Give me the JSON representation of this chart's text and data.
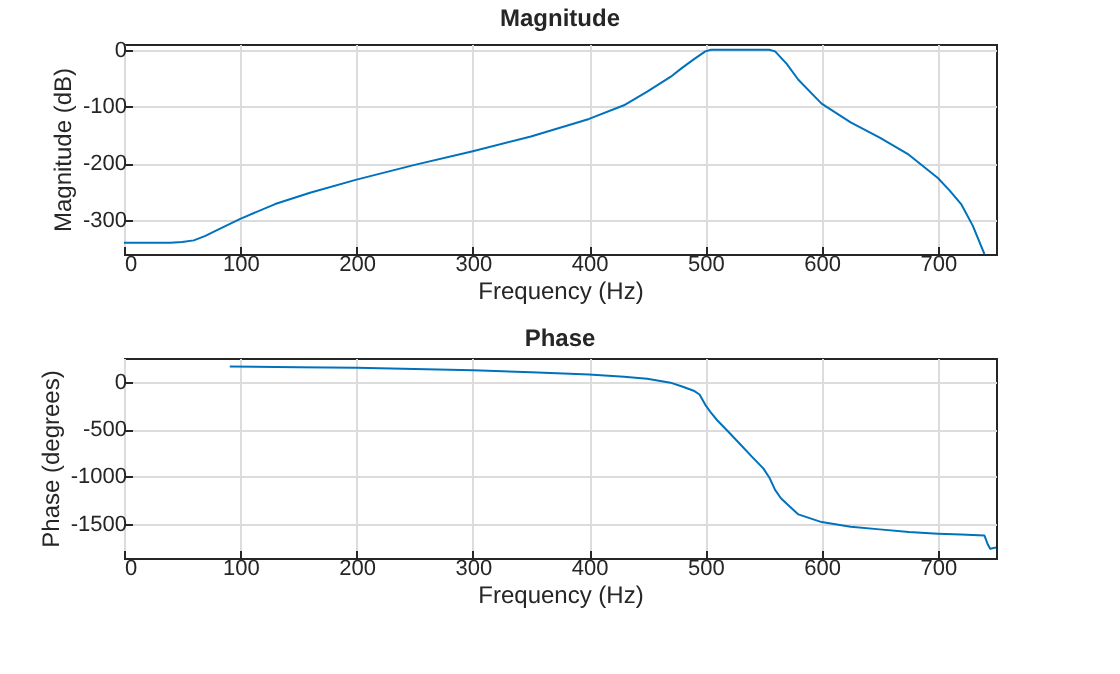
{
  "chart_data": [
    {
      "type": "line",
      "title": "Magnitude",
      "xlabel": "Frequency (Hz)",
      "ylabel": "Magnitude (dB)",
      "xlim": [
        0,
        750
      ],
      "xticks": [
        0,
        100,
        200,
        300,
        400,
        500,
        600,
        700
      ],
      "ylim": [
        -360,
        10
      ],
      "yticks": [
        -300,
        -200,
        -100,
        0
      ],
      "grid": true,
      "series": [
        {
          "color": "#0072bd",
          "x": [
            0,
            40,
            50,
            60,
            70,
            80,
            100,
            130,
            160,
            200,
            250,
            300,
            350,
            400,
            430,
            450,
            470,
            480,
            490,
            500,
            505,
            530,
            555,
            560,
            570,
            580,
            600,
            625,
            650,
            675,
            700,
            710,
            720,
            730,
            740
          ],
          "values": [
            -340,
            -340,
            -339,
            -336,
            -328,
            -318,
            -298,
            -272,
            -252,
            -229,
            -203,
            -179,
            -153,
            -122,
            -98,
            -74,
            -48,
            -32,
            -17,
            -3,
            0,
            0,
            0,
            -3,
            -25,
            -53,
            -95,
            -128,
            -155,
            -185,
            -226,
            -248,
            -272,
            -310,
            -360
          ]
        }
      ]
    },
    {
      "type": "line",
      "title": "Phase",
      "xlabel": "Frequency (Hz)",
      "ylabel": "Phase (degrees)",
      "xlim": [
        0,
        750
      ],
      "xticks": [
        0,
        100,
        200,
        300,
        400,
        500,
        600,
        700
      ],
      "ylim": [
        -1860,
        250
      ],
      "yticks": [
        -1500,
        -1000,
        -500,
        0
      ],
      "grid": true,
      "series": [
        {
          "color": "#0072bd",
          "x": [
            91,
            150,
            200,
            250,
            300,
            350,
            400,
            430,
            450,
            470,
            480,
            490,
            495,
            500,
            505,
            510,
            520,
            530,
            540,
            550,
            555,
            560,
            565,
            570,
            580,
            600,
            625,
            650,
            675,
            700,
            720,
            740,
            743,
            745,
            750
          ],
          "values": [
            160,
            153,
            147,
            135,
            122,
            100,
            77,
            52,
            32,
            -10,
            -51,
            -95,
            -135,
            -244,
            -330,
            -404,
            -530,
            -660,
            -790,
            -917,
            -1010,
            -1141,
            -1230,
            -1288,
            -1400,
            -1481,
            -1530,
            -1558,
            -1585,
            -1603,
            -1613,
            -1622,
            -1718,
            -1763,
            -1750
          ]
        }
      ]
    }
  ]
}
